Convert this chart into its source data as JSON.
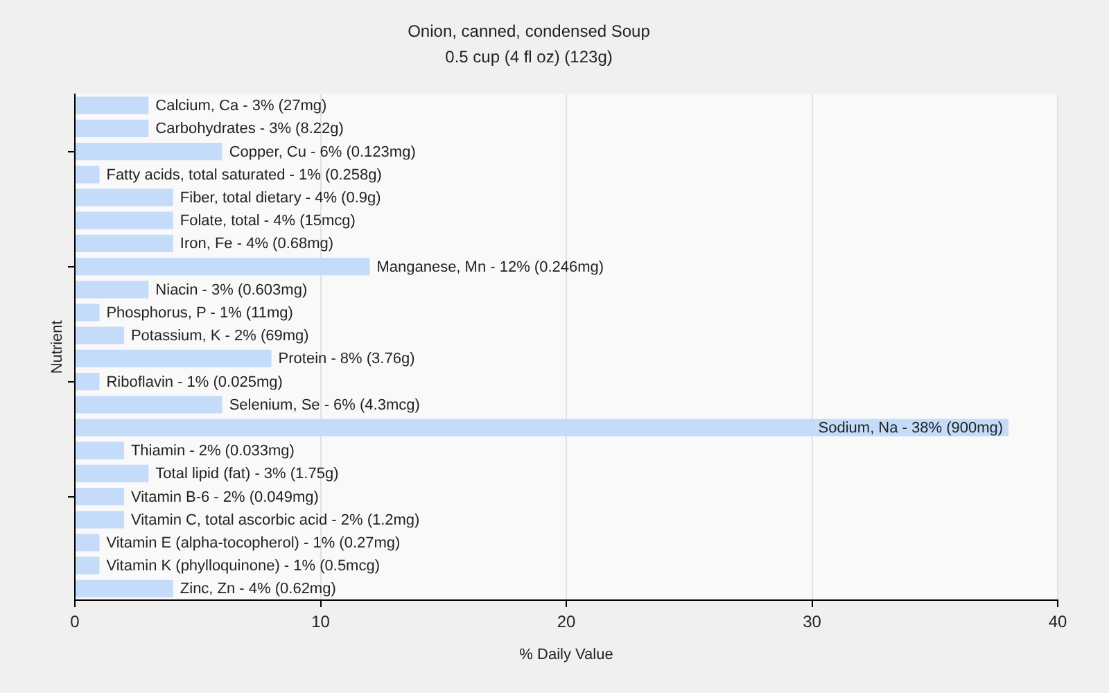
{
  "chart_data": {
    "type": "bar",
    "orientation": "horizontal",
    "title": "Onion, canned, condensed Soup",
    "subtitle": "0.5 cup (4 fl oz) (123g)",
    "xlabel": "% Daily Value",
    "ylabel": "Nutrient",
    "categories": [
      "Calcium, Ca - 3% (27mg)",
      "Carbohydrates - 3% (8.22g)",
      "Copper, Cu - 6% (0.123mg)",
      "Fatty acids, total saturated - 1% (0.258g)",
      "Fiber, total dietary - 4% (0.9g)",
      "Folate, total - 4% (15mcg)",
      "Iron, Fe - 4% (0.68mg)",
      "Manganese, Mn - 12% (0.246mg)",
      "Niacin - 3% (0.603mg)",
      "Phosphorus, P - 1% (11mg)",
      "Potassium, K - 2% (69mg)",
      "Protein - 8% (3.76g)",
      "Riboflavin - 1% (0.025mg)",
      "Selenium, Se - 6% (4.3mcg)",
      "Sodium, Na - 38% (900mg)",
      "Thiamin - 2% (0.033mg)",
      "Total lipid (fat) - 3% (1.75g)",
      "Vitamin B-6 - 2% (0.049mg)",
      "Vitamin C, total ascorbic acid - 2% (1.2mg)",
      "Vitamin E (alpha-tocopherol) - 1% (0.27mg)",
      "Vitamin K (phylloquinone) - 1% (0.5mcg)",
      "Zinc, Zn - 4% (0.62mg)"
    ],
    "values": [
      3,
      3,
      6,
      1,
      4,
      4,
      4,
      12,
      3,
      1,
      2,
      8,
      1,
      6,
      38,
      2,
      3,
      2,
      2,
      1,
      1,
      4
    ],
    "color": "#c4dcfa",
    "xlim": [
      0,
      40
    ],
    "xticks": [
      0,
      10,
      20,
      30,
      40
    ],
    "grid": "x"
  }
}
